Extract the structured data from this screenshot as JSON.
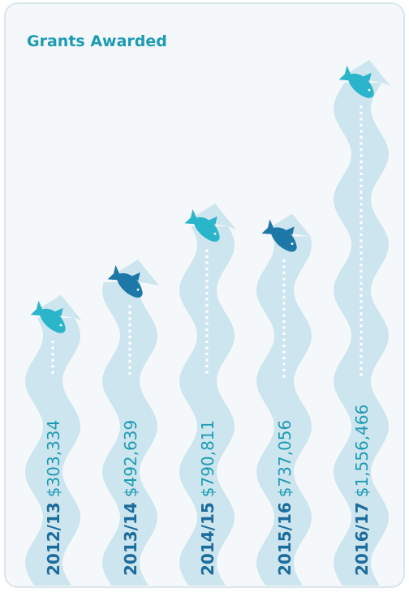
{
  "chart_data": {
    "type": "stream",
    "title": "Grants Awarded",
    "categories": [
      "2012/13",
      "2013/14",
      "2014/15",
      "2015/16",
      "2016/17"
    ],
    "values": [
      303334,
      492639,
      790811,
      737056,
      1556466
    ],
    "value_labels": [
      "$303,334",
      "$492,639",
      "$790,811",
      "$737,056",
      "$1,556,466"
    ],
    "colors": [
      "#2bb5ca",
      "#1d78a8",
      "#2bb5ca",
      "#1d78a8",
      "#2bb5ca"
    ]
  }
}
